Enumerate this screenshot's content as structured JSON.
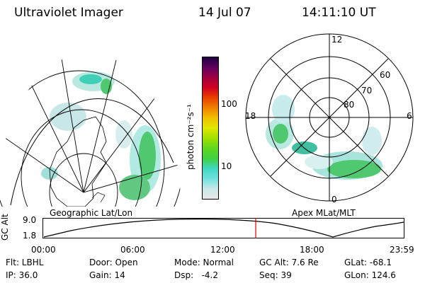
{
  "header": {
    "title": "Ultraviolet Imager",
    "date": "14 Jul 07",
    "time": "14:11:10 UT"
  },
  "colorbar": {
    "unit_label": "photon cm⁻²s⁻¹",
    "ticks": [
      "100",
      "10"
    ],
    "colors": [
      "#e8e8e8",
      "#c8e8e8",
      "#70e0e0",
      "#40d8c0",
      "#40d040",
      "#60d820",
      "#a0e000",
      "#e0e800",
      "#f0c000",
      "#f08000",
      "#e84000",
      "#d00020",
      "#a00040",
      "#600060",
      "#200040"
    ]
  },
  "left_panel": {
    "caption": "Geographic Lat/Lon"
  },
  "right_panel": {
    "caption": "Apex MLat/MLT",
    "mlt_labels": [
      "12",
      "18",
      "6",
      "0"
    ],
    "lat_labels": [
      "60",
      "70",
      "80"
    ]
  },
  "orbit": {
    "axis_label": "GC Alt",
    "y_ticks": [
      "9.0",
      "1.8"
    ],
    "x_ticks": [
      "00:00",
      "06:00",
      "12:00",
      "18:00",
      "23:59"
    ],
    "marker_color": "#e00000"
  },
  "status": {
    "filter": "Flt: LBHL",
    "ip": "IP: 36.0",
    "door": "Door: Open",
    "gain": "Gain: 14",
    "mode": "Mode: Normal",
    "dsp": "Dsp:   -4.2",
    "gc_alt": "GC Alt: 7.6 Re",
    "seq": "Seq: 39",
    "glat": "GLat: -68.1",
    "glon": "GLon: 124.6"
  }
}
